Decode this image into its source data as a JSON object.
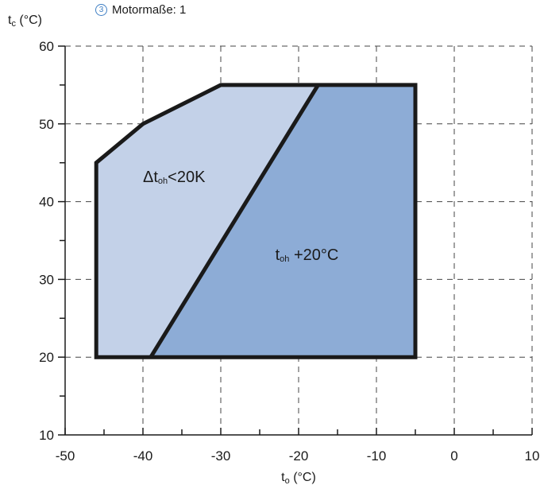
{
  "note": {
    "number": "3",
    "text": "Motormaße: 1"
  },
  "colors": {
    "light_region": "#c3d1e8",
    "dark_region": "#8dacd6",
    "outline": "#1a1a1a",
    "grid": "#444444",
    "badge": "#3f7fc4"
  },
  "chart_data": {
    "type": "area",
    "xlabel": {
      "main": "t",
      "sub": "o",
      "rest": "  (°C)"
    },
    "ylabel": {
      "main": "t",
      "sub": "c",
      "rest": " (°C)"
    },
    "xlim": [
      -50,
      10
    ],
    "ylim": [
      10,
      60
    ],
    "x_ticks": [
      -50,
      -40,
      -30,
      -20,
      -10,
      0,
      10
    ],
    "y_ticks": [
      10,
      20,
      30,
      40,
      50,
      60
    ],
    "x_tick_labels": [
      "-50",
      "-40",
      "-30",
      "-20",
      "-10",
      "0",
      "10"
    ],
    "y_tick_labels": [
      "10",
      "20",
      "30",
      "40",
      "50",
      "60"
    ],
    "grid": "dashed",
    "regions": [
      {
        "label_main": "Δt",
        "label_sub": "oh",
        "label_rest": "<20K",
        "label_at": [
          -40,
          42.5
        ],
        "fill": "#c3d1e8",
        "points": [
          [
            -46,
            20
          ],
          [
            -39,
            20
          ],
          [
            -17.5,
            55
          ],
          [
            -30,
            55
          ],
          [
            -40,
            50
          ],
          [
            -46,
            45
          ]
        ]
      },
      {
        "label_main": "t",
        "label_sub": "oh",
        "label_rest": " +20°C",
        "label_at": [
          -23,
          32.5
        ],
        "fill": "#8dacd6",
        "points": [
          [
            -39,
            20
          ],
          [
            -5,
            20
          ],
          [
            -5,
            55
          ],
          [
            -17.5,
            55
          ]
        ]
      }
    ],
    "envelope": [
      [
        -46,
        20
      ],
      [
        -5,
        20
      ],
      [
        -5,
        55
      ],
      [
        -30,
        55
      ],
      [
        -40,
        50
      ],
      [
        -46,
        45
      ]
    ],
    "divider": [
      [
        -39,
        20
      ],
      [
        -17.5,
        55
      ]
    ]
  }
}
